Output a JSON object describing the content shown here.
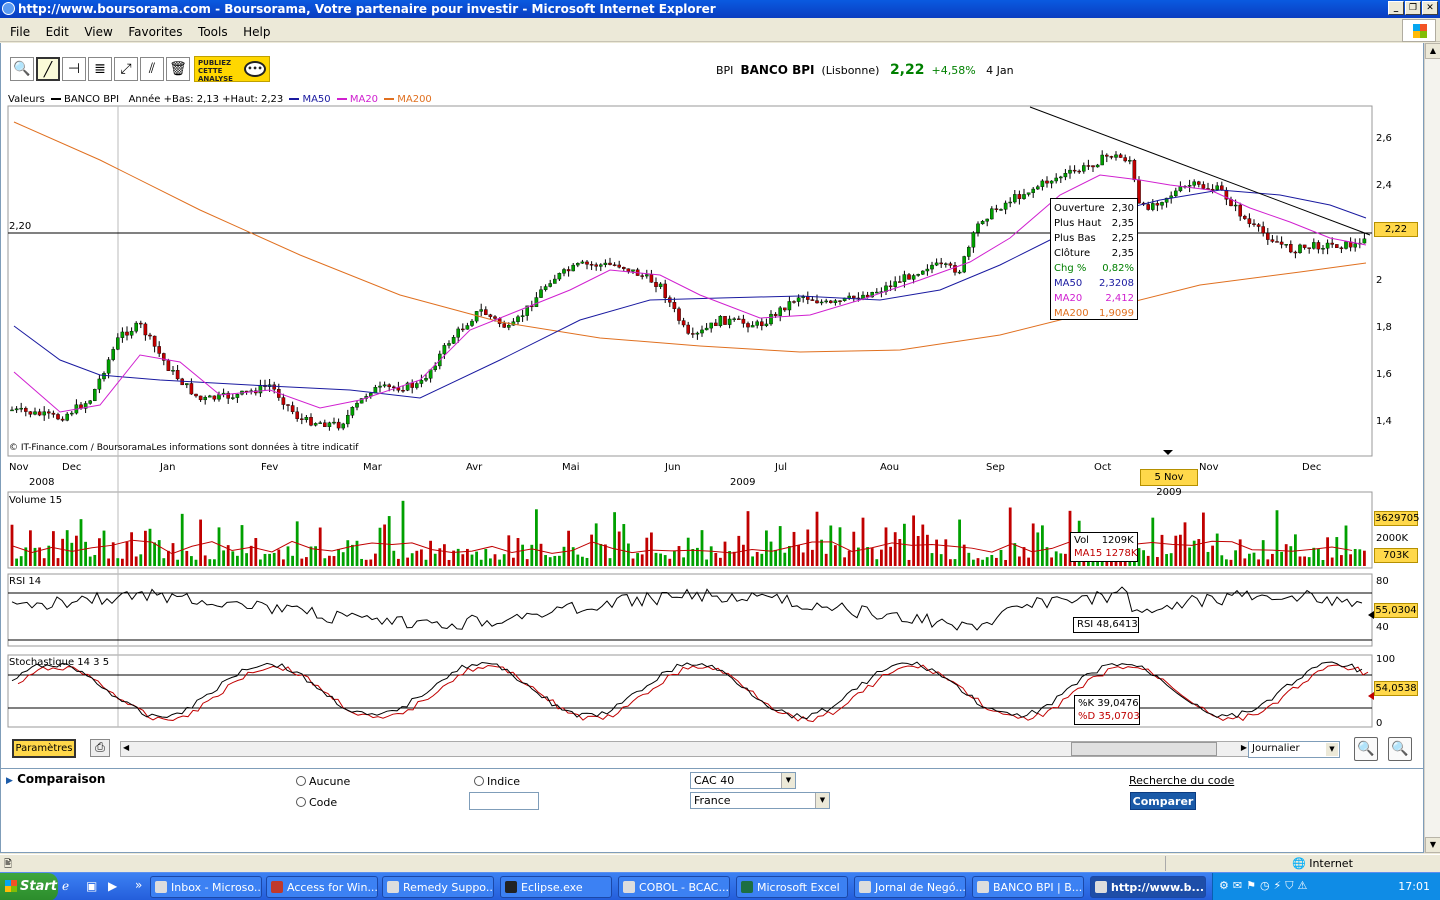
{
  "window": {
    "title": "http://www.boursorama.com - Boursorama, Votre partenaire pour investir - Microsoft Internet Explorer"
  },
  "menu": [
    "File",
    "Edit",
    "View",
    "Favorites",
    "Tools",
    "Help"
  ],
  "publiez": {
    "line1": "PUBLIEZ",
    "line2": "CETTE",
    "line3": "ANALYSE"
  },
  "stock": {
    "ticker": "BPI",
    "name": "BANCO BPI",
    "market": "(Lisbonne)",
    "price": "2,22",
    "change": "+4,58%",
    "date": "4 Jan"
  },
  "legend": {
    "valeurs": "Valeurs",
    "series": "BANCO BPI",
    "range": "Année +Bas: 2,13 +Haut: 2,23",
    "ma50": "MA50",
    "ma20": "MA20",
    "ma200": "MA200"
  },
  "colors": {
    "ma50": "#1a1aa0",
    "ma20": "#d020d0",
    "ma200": "#e07020",
    "up": "#00a000",
    "down": "#c00000",
    "highlight": "#ffd84a"
  },
  "price_chart": {
    "ref_line_label": "2,20",
    "y_ticks": [
      "2,6",
      "2,4",
      "2,2",
      "2",
      "1,8",
      "1,6",
      "1,4"
    ],
    "current_value": "2,22",
    "credit": "© IT-Finance.com / BoursoramaLes informations sont données à titre indicatif",
    "x_months": [
      "Nov",
      "Dec",
      "Jan",
      "Fev",
      "Mar",
      "Avr",
      "Mai",
      "Jun",
      "Jul",
      "Aou",
      "Sep",
      "Oct",
      "Nov",
      "Dec"
    ],
    "year_2008": "2008",
    "year_2009": "2009",
    "cursor_date": "5 Nov 2009"
  },
  "tooltip": {
    "rows": [
      {
        "label": "Ouverture",
        "value": "2,30",
        "color": "#000000"
      },
      {
        "label": "Plus Haut",
        "value": "2,35",
        "color": "#000000"
      },
      {
        "label": "Plus Bas",
        "value": "2,25",
        "color": "#000000"
      },
      {
        "label": "Clôture",
        "value": "2,35",
        "color": "#000000"
      },
      {
        "label": "Chg %",
        "value": "0,82%",
        "color": "#008000"
      },
      {
        "label": "MA50",
        "value": "2,3208",
        "color": "#1a1aa0"
      },
      {
        "label": "MA20",
        "value": "2,412",
        "color": "#d020d0"
      },
      {
        "label": "MA200",
        "value": "1,9099",
        "color": "#e07020"
      }
    ]
  },
  "volume": {
    "title": "Volume 15",
    "box1": "3629705",
    "box2": "2000K",
    "box3": "703K",
    "vol_label": "Vol",
    "vol_value": "1209K",
    "ma_label": "MA15 1278K"
  },
  "rsi": {
    "title": "RSI 14",
    "tick_top": "80",
    "tick_bottom": "40",
    "value": "55,0304",
    "readout": "RSI 48,6413"
  },
  "stoch": {
    "title": "Stochastique 14 3 5",
    "tick_top": "100",
    "tick_bottom": "0",
    "value": "54,0538",
    "k": "%K 39,0476",
    "d": "%D 35,0703"
  },
  "bottom": {
    "params": "Paramètres",
    "period": "Journalier"
  },
  "comparison": {
    "title": "Comparaison",
    "opt_none": "Aucune",
    "opt_code": "Code",
    "opt_index": "Indice",
    "index_value": "CAC 40",
    "country_value": "France",
    "search_link": "Recherche du code",
    "compare_button": "Comparer"
  },
  "statusbar": {
    "zone": "Internet"
  },
  "taskbar": {
    "start": "Start",
    "tasks": [
      "Inbox - Microso...",
      "Access for Win...",
      "Remedy Suppo...",
      "Eclipse.exe",
      "COBOL - BCAC...",
      "Microsoft Excel",
      "Jornal de Negó...",
      "BANCO BPI | B...",
      "http://www.b..."
    ],
    "clock": "17:01"
  }
}
